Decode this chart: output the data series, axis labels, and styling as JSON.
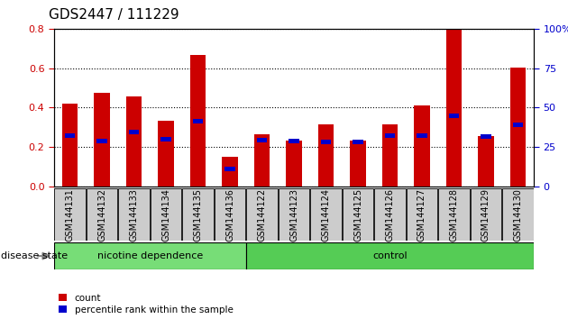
{
  "title": "GDS2447 / 111229",
  "samples": [
    "GSM144131",
    "GSM144132",
    "GSM144133",
    "GSM144134",
    "GSM144135",
    "GSM144136",
    "GSM144122",
    "GSM144123",
    "GSM144124",
    "GSM144125",
    "GSM144126",
    "GSM144127",
    "GSM144128",
    "GSM144129",
    "GSM144130"
  ],
  "count_values": [
    0.42,
    0.475,
    0.455,
    0.335,
    0.665,
    0.15,
    0.265,
    0.235,
    0.315,
    0.235,
    0.315,
    0.41,
    0.795,
    0.255,
    0.605
  ],
  "percentile_values": [
    0.26,
    0.23,
    0.275,
    0.24,
    0.33,
    0.09,
    0.235,
    0.23,
    0.225,
    0.225,
    0.26,
    0.26,
    0.36,
    0.255,
    0.315
  ],
  "bar_color": "#cc0000",
  "percentile_color": "#0000cc",
  "ylim_left": [
    0,
    0.8
  ],
  "ylim_right": [
    0,
    100
  ],
  "yticks_left": [
    0,
    0.2,
    0.4,
    0.6,
    0.8
  ],
  "yticks_right": [
    0,
    25,
    50,
    75,
    100
  ],
  "groups": [
    {
      "label": "nicotine dependence",
      "start": 0,
      "end": 6,
      "color": "#77dd77"
    },
    {
      "label": "control",
      "start": 6,
      "end": 15,
      "color": "#55cc55"
    }
  ],
  "group_bar_bg": "#cccccc",
  "disease_state_label": "disease state",
  "legend_items": [
    {
      "label": "count",
      "color": "#cc0000"
    },
    {
      "label": "percentile rank within the sample",
      "color": "#0000cc"
    }
  ],
  "bar_width": 0.5,
  "title_fontsize": 11,
  "tick_fontsize": 8,
  "label_fontsize": 7
}
